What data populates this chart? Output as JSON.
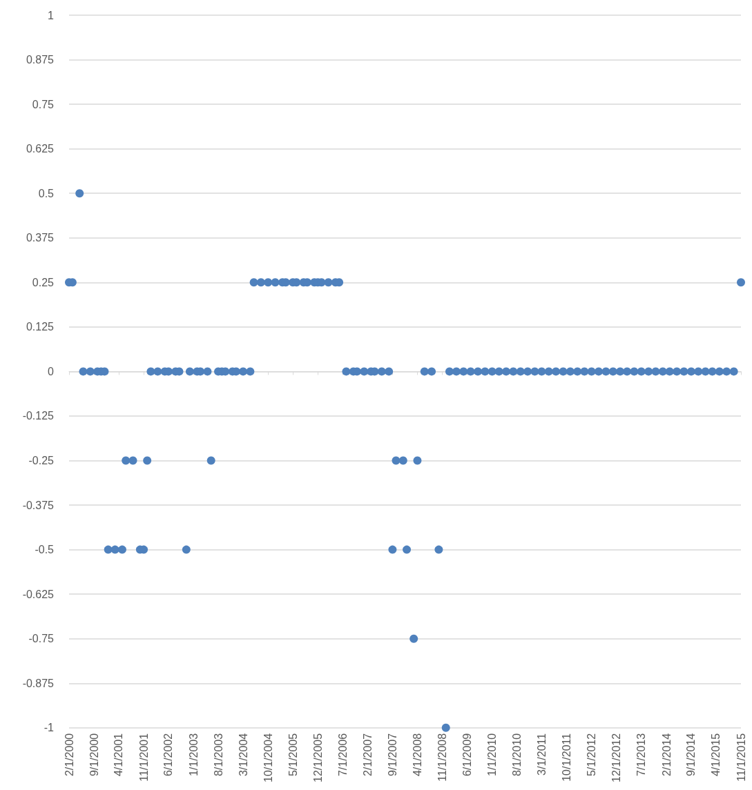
{
  "chart_data": {
    "type": "scatter",
    "marker": "circle",
    "grid": "y",
    "x": [
      "2000-02",
      "2000-03",
      "2000-05",
      "2000-06",
      "2000-08",
      "2000-10",
      "2000-11",
      "2000-12",
      "2001-01",
      "2001-03",
      "2001-05",
      "2001-06",
      "2001-08",
      "2001-10",
      "2001-11",
      "2001-12",
      "2002-01",
      "2002-03",
      "2002-05",
      "2002-06",
      "2002-08",
      "2002-09",
      "2002-11",
      "2002-12",
      "2003-02",
      "2003-03",
      "2003-05",
      "2003-06",
      "2003-08",
      "2003-09",
      "2003-10",
      "2003-12",
      "2004-01",
      "2004-03",
      "2004-05",
      "2004-06",
      "2004-08",
      "2004-10",
      "2004-12",
      "2005-02",
      "2005-03",
      "2005-05",
      "2005-06",
      "2005-08",
      "2005-09",
      "2005-11",
      "2005-12",
      "2006-01",
      "2006-03",
      "2006-05",
      "2006-06",
      "2006-08",
      "2006-10",
      "2006-11",
      "2007-01",
      "2007-03",
      "2007-04",
      "2007-06",
      "2007-08",
      "2007-09",
      "2007-10",
      "2007-12",
      "2008-01",
      "2008-03",
      "2008-04",
      "2008-06",
      "2008-08",
      "2008-10",
      "2008-12",
      "2009-01",
      "2009-03",
      "2009-05",
      "2009-07",
      "2009-09",
      "2009-11",
      "2010-01",
      "2010-03",
      "2010-05",
      "2010-07",
      "2010-09",
      "2010-11",
      "2011-01",
      "2011-03",
      "2011-05",
      "2011-07",
      "2011-09",
      "2011-11",
      "2012-01",
      "2012-03",
      "2012-05",
      "2012-07",
      "2012-09",
      "2012-11",
      "2013-01",
      "2013-03",
      "2013-05",
      "2013-07",
      "2013-09",
      "2013-11",
      "2014-01",
      "2014-03",
      "2014-05",
      "2014-07",
      "2014-09",
      "2014-11",
      "2015-01",
      "2015-03",
      "2015-05",
      "2015-07",
      "2015-09",
      "2015-11"
    ],
    "series": [
      {
        "color": "#4f81bd",
        "values": [
          0.25,
          0.25,
          0.5,
          0,
          0,
          0,
          0,
          0,
          -0.5,
          -0.5,
          -0.5,
          -0.25,
          -0.25,
          -0.5,
          -0.5,
          -0.25,
          0,
          0,
          0,
          0,
          0,
          0,
          -0.5,
          0,
          0,
          0,
          0,
          -0.25,
          0,
          0,
          0,
          0,
          0,
          0,
          0,
          0.25,
          0.25,
          0.25,
          0.25,
          0.25,
          0.25,
          0.25,
          0.25,
          0.25,
          0.25,
          0.25,
          0.25,
          0.25,
          0.25,
          0.25,
          0.25,
          0,
          0,
          0,
          0,
          0,
          0,
          0,
          0,
          -0.5,
          -0.25,
          -0.25,
          -0.5,
          -0.75,
          -0.25,
          0,
          0,
          -0.5,
          -1,
          0,
          0,
          0,
          0,
          0,
          0,
          0,
          0,
          0,
          0,
          0,
          0,
          0,
          0,
          0,
          0,
          0,
          0,
          0,
          0,
          0,
          0,
          0,
          0,
          0,
          0,
          0,
          0,
          0,
          0,
          0,
          0,
          0,
          0,
          0,
          0,
          0,
          0,
          0,
          0,
          0,
          0.25
        ]
      }
    ],
    "xlim": [
      "2000-02",
      "2015-11"
    ],
    "xticks": [
      {
        "value": "2000-02",
        "label": "2/1/2000"
      },
      {
        "value": "2000-09",
        "label": "9/1/2000"
      },
      {
        "value": "2001-04",
        "label": "4/1/2001"
      },
      {
        "value": "2001-11",
        "label": "11/1/2001"
      },
      {
        "value": "2002-06",
        "label": "6/1/2002"
      },
      {
        "value": "2003-01",
        "label": "1/1/2003"
      },
      {
        "value": "2003-08",
        "label": "8/1/2003"
      },
      {
        "value": "2004-03",
        "label": "3/1/2004"
      },
      {
        "value": "2004-10",
        "label": "10/1/2004"
      },
      {
        "value": "2005-05",
        "label": "5/1/2005"
      },
      {
        "value": "2005-12",
        "label": "12/1/2005"
      },
      {
        "value": "2006-07",
        "label": "7/1/2006"
      },
      {
        "value": "2007-02",
        "label": "2/1/2007"
      },
      {
        "value": "2007-09",
        "label": "9/1/2007"
      },
      {
        "value": "2008-04",
        "label": "4/1/2008"
      },
      {
        "value": "2008-11",
        "label": "11/1/2008"
      },
      {
        "value": "2009-06",
        "label": "6/1/2009"
      },
      {
        "value": "2010-01",
        "label": "1/1/2010"
      },
      {
        "value": "2010-08",
        "label": "8/1/2010"
      },
      {
        "value": "2011-03",
        "label": "3/1/2011"
      },
      {
        "value": "2011-10",
        "label": "10/1/2011"
      },
      {
        "value": "2012-05",
        "label": "5/1/2012"
      },
      {
        "value": "2012-12",
        "label": "12/1/2012"
      },
      {
        "value": "2013-07",
        "label": "7/1/2013"
      },
      {
        "value": "2014-02",
        "label": "2/1/2014"
      },
      {
        "value": "2014-09",
        "label": "9/1/2014"
      },
      {
        "value": "2015-04",
        "label": "4/1/2015"
      },
      {
        "value": "2015-11",
        "label": "11/1/2015"
      }
    ],
    "ylim": [
      -1,
      1
    ],
    "yticks": [
      -1,
      -0.875,
      -0.75,
      -0.625,
      -0.5,
      -0.375,
      -0.25,
      -0.125,
      0,
      0.125,
      0.25,
      0.375,
      0.5,
      0.625,
      0.75,
      0.875,
      1
    ]
  }
}
